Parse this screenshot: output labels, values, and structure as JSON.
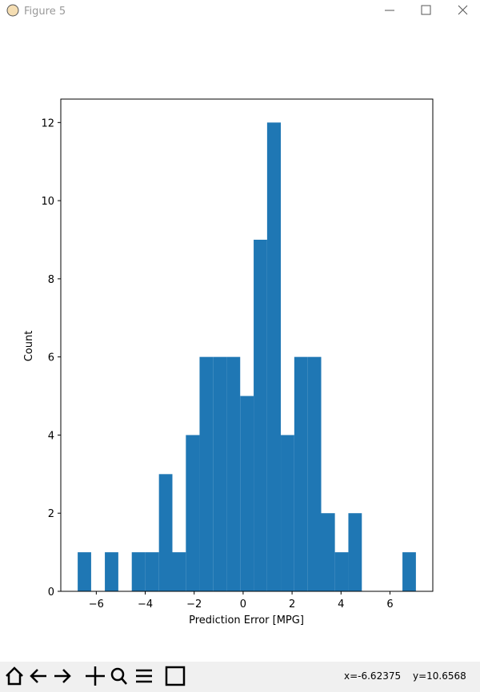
{
  "window": {
    "title": "Figure 5",
    "status_x": "x=-6.62375",
    "status_y": "y=10.6568"
  },
  "chart_data": {
    "type": "histogram",
    "xlabel": "Prediction Error [MPG]",
    "ylabel": "Count",
    "bins": [
      -6.76,
      -6.21,
      -5.65,
      -5.1,
      -4.55,
      -3.99,
      -3.44,
      -2.89,
      -2.34,
      -1.78,
      -1.23,
      -0.68,
      -0.12,
      0.43,
      0.98,
      1.54,
      2.09,
      2.64,
      3.19,
      3.75,
      4.3,
      4.85,
      5.41,
      5.96,
      6.51,
      7.06
    ],
    "values": [
      1,
      0,
      1,
      0,
      1,
      1,
      3,
      1,
      4,
      6,
      6,
      6,
      5,
      9,
      12,
      4,
      6,
      6,
      2,
      1,
      2,
      0,
      0,
      0,
      1
    ],
    "color": "#1f77b4",
    "xlim": [
      -7.45,
      7.75
    ],
    "xticks": [
      {
        "value": -6,
        "label": "−6"
      },
      {
        "value": -4,
        "label": "−4"
      },
      {
        "value": -2,
        "label": "−2"
      },
      0,
      2,
      4,
      6
    ],
    "ylim": [
      0,
      12.6
    ],
    "yticks": [
      0,
      2,
      4,
      6,
      8,
      10,
      12
    ]
  }
}
